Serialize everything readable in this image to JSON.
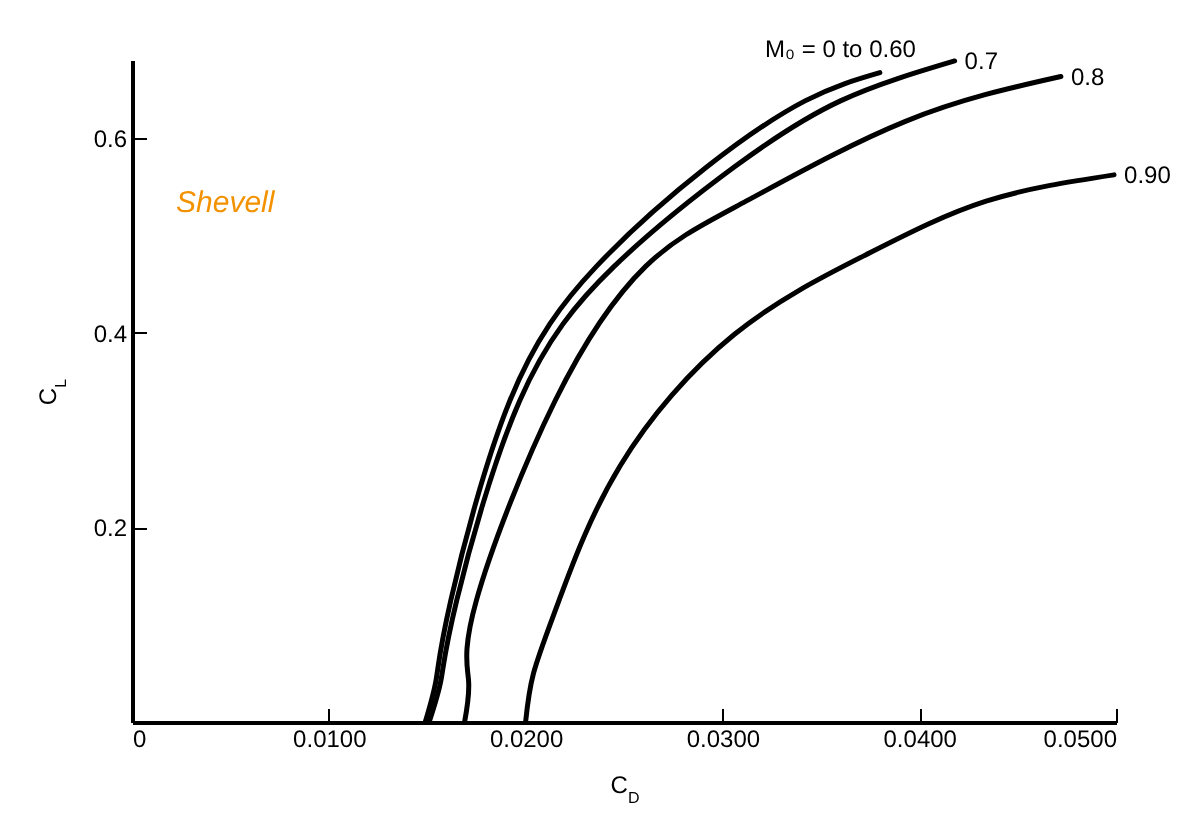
{
  "chart_data": {
    "type": "line",
    "xlabel": "C$_{D}$",
    "ylabel": "C$_{L}$",
    "annotations": [
      "Shevell"
    ],
    "xlim": [
      0,
      0.05
    ],
    "ylim": [
      0,
      0.68
    ],
    "xticks": [
      0,
      {
        "value": 0.01,
        "label": "0.0100"
      },
      {
        "value": 0.02,
        "label": "0.0200"
      },
      {
        "value": 0.03,
        "label": "0.0300"
      },
      {
        "value": 0.04,
        "label": "0.0400"
      },
      {
        "value": 0.05,
        "label": "0.0500"
      }
    ],
    "yticks": [
      0.2,
      0.4,
      0.6
    ],
    "grid": false,
    "marker": "none",
    "line_style": "solid",
    "series": [
      {
        "name": "M₀ = 0 to 0.60",
        "color": "#000000",
        "x": [
          0.0149,
          0.01545,
          0.0162,
          0.0192,
          0.0236,
          0.0292,
          0.0342,
          0.038
        ],
        "values": [
          0,
          0.043,
          0.125,
          0.33,
          0.468,
          0.57,
          0.638,
          0.667
        ]
      },
      {
        "name": "0.7",
        "color": "#000000",
        "x": [
          0.0151,
          0.0157,
          0.0165,
          0.0197,
          0.0245,
          0.0306,
          0.036,
          0.0418
        ],
        "values": [
          0,
          0.043,
          0.125,
          0.33,
          0.468,
          0.57,
          0.638,
          0.679
        ]
      },
      {
        "name": "0.8",
        "color": "#000000",
        "x": [
          0.0169,
          0.0171,
          0.0175,
          0.0215,
          0.0261,
          0.0312,
          0.0393,
          0.0472
        ],
        "values": [
          0,
          0.043,
          0.125,
          0.33,
          0.468,
          0.535,
          0.617,
          0.663
        ]
      },
      {
        "name": "0.90",
        "color": "#000000",
        "x": [
          0.02,
          0.0204,
          0.0217,
          0.0248,
          0.0306,
          0.0373,
          0.0434,
          0.0499
        ],
        "values": [
          0,
          0.05,
          0.125,
          0.263,
          0.398,
          0.48,
          0.535,
          0.562
        ]
      }
    ]
  }
}
